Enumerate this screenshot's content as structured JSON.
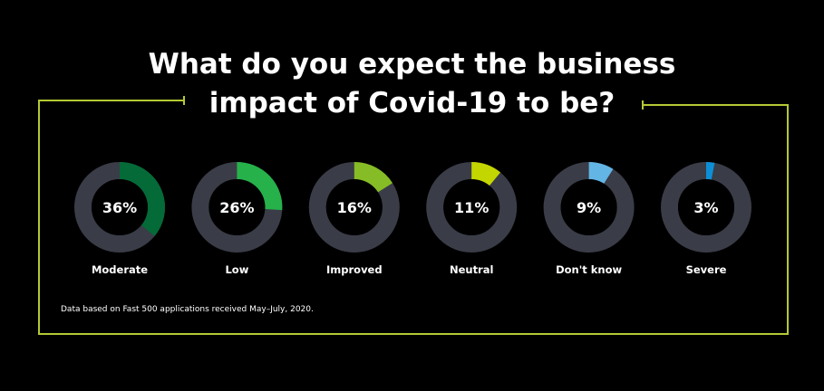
{
  "title": {
    "line1": "What do you expect the business",
    "line2": "impact of Covid-19 to be?"
  },
  "footnote": "Data based on Fast 500 applications received May–July, 2020.",
  "colors": {
    "background": "#000000",
    "frame": "#b5c934",
    "track": "#3a3c47",
    "text": "#ffffff"
  },
  "chart_data": {
    "type": "pie",
    "variant": "donut-grid",
    "categories": [
      "Moderate",
      "Low",
      "Improved",
      "Neutral",
      "Don't know",
      "Severe"
    ],
    "values": [
      36,
      26,
      16,
      11,
      9,
      3
    ],
    "labels": [
      "36%",
      "26%",
      "16%",
      "11%",
      "9%",
      "3%"
    ],
    "colors": [
      "#046a38",
      "#26b14a",
      "#86bc25",
      "#c4d600",
      "#62b5e5",
      "#0d8fd8"
    ],
    "unit": "%"
  }
}
